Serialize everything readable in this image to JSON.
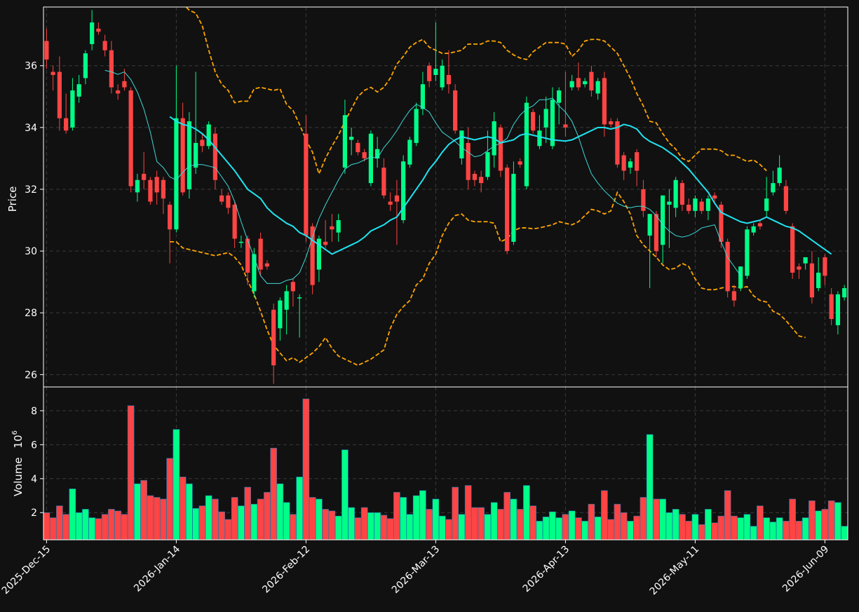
{
  "chart_data": {
    "type": "candlestick",
    "colors": {
      "background": "#111111",
      "up": "#00ff88",
      "down": "#ff4444",
      "ma_long": "#1fe3f0",
      "ma_short": "#40d8d8",
      "bands": "#ffa500",
      "grid": "#3a3a3a",
      "text": "#ffffff"
    },
    "price_panel": {
      "ylabel": "Price",
      "ylim": [
        25.6,
        37.9
      ],
      "yticks": [
        26,
        28,
        30,
        32,
        34,
        36
      ]
    },
    "volume_panel": {
      "ylabel": "Volume",
      "ylabel_exponent": "6",
      "ylim": [
        0.4,
        9.4
      ],
      "yticks": [
        2,
        4,
        6,
        8
      ]
    },
    "x_tick_labels": [
      {
        "index": 0,
        "label": "2025-Dec-15"
      },
      {
        "index": 20,
        "label": "2026-Jan-14"
      },
      {
        "index": 40,
        "label": "2026-Feb-12"
      },
      {
        "index": 60,
        "label": "2026-Mar-13"
      },
      {
        "index": 80,
        "label": "2026-Apr-13"
      },
      {
        "index": 100,
        "label": "2026-May-11"
      },
      {
        "index": 120,
        "label": "2026-Jun-09"
      }
    ],
    "candles": [
      [
        36.8,
        37.2,
        35.9,
        36.2,
        2.0
      ],
      [
        35.8,
        36.0,
        35.2,
        35.7,
        1.7
      ],
      [
        35.8,
        36.3,
        33.9,
        34.3,
        2.4
      ],
      [
        34.3,
        35.1,
        33.8,
        33.9,
        1.9
      ],
      [
        34.0,
        35.6,
        33.9,
        35.2,
        3.4
      ],
      [
        35.0,
        35.7,
        34.8,
        35.4,
        2.0
      ],
      [
        35.6,
        36.5,
        35.4,
        36.4,
        2.2
      ],
      [
        36.7,
        37.8,
        36.5,
        37.4,
        1.7
      ],
      [
        37.2,
        37.4,
        37.0,
        37.1,
        1.65
      ],
      [
        36.8,
        37.0,
        36.3,
        36.5,
        1.9
      ],
      [
        36.5,
        36.8,
        35.1,
        35.3,
        2.2
      ],
      [
        35.2,
        35.4,
        34.9,
        35.1,
        2.1
      ],
      [
        35.5,
        35.9,
        35.2,
        35.3,
        1.9
      ],
      [
        35.2,
        35.3,
        31.9,
        32.1,
        8.3
      ],
      [
        31.9,
        32.5,
        31.6,
        32.3,
        3.7
      ],
      [
        32.5,
        33.2,
        32.0,
        32.3,
        3.9
      ],
      [
        32.3,
        32.4,
        31.5,
        31.6,
        3.0
      ],
      [
        32.4,
        32.6,
        31.5,
        31.9,
        2.9
      ],
      [
        32.3,
        32.4,
        31.2,
        31.7,
        2.8
      ],
      [
        31.5,
        31.6,
        29.6,
        30.7,
        5.2
      ],
      [
        30.7,
        36.0,
        30.6,
        34.3,
        6.9
      ],
      [
        34.3,
        34.8,
        31.8,
        31.9,
        4.1
      ],
      [
        32.0,
        34.5,
        31.7,
        34.2,
        3.7
      ],
      [
        32.7,
        35.8,
        32.5,
        33.5,
        2.25
      ],
      [
        33.6,
        33.8,
        33.2,
        33.4,
        2.4
      ],
      [
        33.4,
        34.2,
        33.3,
        34.1,
        3.0
      ],
      [
        33.8,
        34.0,
        32.0,
        32.3,
        2.8
      ],
      [
        31.8,
        32.0,
        31.5,
        31.6,
        2.05
      ],
      [
        31.8,
        31.9,
        31.2,
        31.4,
        1.6
      ],
      [
        31.5,
        31.6,
        30.1,
        30.4,
        2.9
      ],
      [
        30.3,
        30.5,
        30.1,
        30.3,
        2.4
      ],
      [
        30.4,
        30.5,
        28.9,
        29.3,
        3.5
      ],
      [
        28.7,
        30.1,
        28.5,
        29.9,
        2.5
      ],
      [
        30.4,
        30.6,
        29.2,
        29.4,
        2.8
      ],
      [
        29.6,
        29.7,
        29.4,
        29.5,
        3.2
      ],
      [
        28.1,
        28.3,
        25.7,
        26.3,
        5.8
      ],
      [
        27.5,
        28.5,
        27.1,
        28.4,
        3.7
      ],
      [
        28.1,
        28.9,
        27.3,
        28.7,
        2.6
      ],
      [
        29.0,
        29.1,
        28.2,
        28.7,
        1.9
      ],
      [
        28.5,
        28.6,
        27.2,
        28.5,
        4.1
      ],
      [
        33.8,
        34.4,
        30.3,
        30.5,
        8.7
      ],
      [
        30.8,
        30.9,
        28.6,
        28.9,
        2.9
      ],
      [
        29.4,
        30.5,
        29.0,
        30.4,
        2.8
      ],
      [
        30.3,
        31.0,
        30.1,
        30.2,
        2.2
      ],
      [
        30.8,
        31.2,
        30.3,
        30.7,
        2.1
      ],
      [
        30.6,
        31.2,
        30.3,
        31.0,
        1.8
      ],
      [
        32.7,
        34.9,
        32.5,
        34.4,
        5.7
      ],
      [
        33.6,
        34.0,
        33.1,
        33.7,
        2.3
      ],
      [
        33.5,
        33.6,
        33.1,
        33.2,
        1.7
      ],
      [
        33.2,
        33.3,
        32.9,
        33.0,
        2.3
      ],
      [
        32.2,
        33.9,
        32.1,
        33.8,
        2.0
      ],
      [
        33.0,
        33.7,
        32.7,
        33.3,
        2.0
      ],
      [
        32.7,
        33.0,
        31.7,
        31.8,
        1.85
      ],
      [
        31.6,
        31.9,
        31.3,
        31.5,
        1.65
      ],
      [
        31.8,
        32.3,
        30.2,
        31.6,
        3.2
      ],
      [
        31.0,
        33.1,
        30.9,
        32.9,
        2.9
      ],
      [
        32.8,
        33.7,
        32.7,
        33.6,
        1.9
      ],
      [
        33.5,
        34.8,
        33.4,
        34.6,
        3.0
      ],
      [
        34.6,
        35.8,
        34.4,
        35.4,
        3.3
      ],
      [
        36.0,
        36.1,
        35.3,
        35.5,
        2.2
      ],
      [
        35.7,
        37.4,
        35.5,
        35.9,
        2.8
      ],
      [
        35.3,
        36.2,
        35.2,
        36.0,
        1.8
      ],
      [
        35.7,
        36.5,
        35.1,
        35.4,
        1.6
      ],
      [
        35.2,
        35.4,
        33.8,
        33.9,
        3.5
      ],
      [
        33.0,
        33.9,
        32.8,
        33.9,
        1.9
      ],
      [
        33.5,
        34.0,
        32.0,
        32.3,
        3.6
      ],
      [
        32.5,
        32.6,
        32.1,
        32.3,
        2.3
      ],
      [
        32.4,
        32.6,
        31.9,
        32.2,
        2.3
      ],
      [
        32.4,
        33.9,
        32.3,
        33.2,
        1.9
      ],
      [
        33.1,
        34.5,
        32.7,
        34.2,
        2.6
      ],
      [
        34.0,
        34.1,
        32.4,
        32.6,
        2.2
      ],
      [
        32.7,
        32.8,
        29.9,
        30.0,
        3.2
      ],
      [
        30.3,
        32.9,
        30.2,
        32.5,
        2.8
      ],
      [
        32.9,
        33.0,
        32.7,
        32.8,
        2.2
      ],
      [
        32.1,
        35.0,
        32.0,
        34.8,
        3.6
      ],
      [
        34.5,
        34.6,
        33.8,
        33.9,
        2.4
      ],
      [
        33.4,
        34.4,
        33.3,
        33.9,
        1.5
      ],
      [
        34.0,
        35.0,
        33.5,
        34.6,
        1.75
      ],
      [
        33.4,
        35.3,
        33.3,
        34.9,
        2.05
      ],
      [
        34.8,
        35.3,
        34.1,
        35.2,
        1.7
      ],
      [
        34.1,
        35.8,
        33.7,
        34.0,
        1.9
      ],
      [
        35.3,
        35.7,
        35.2,
        35.5,
        2.1
      ],
      [
        35.6,
        36.1,
        35.2,
        35.3,
        1.7
      ],
      [
        35.4,
        35.6,
        35.3,
        35.5,
        1.5
      ],
      [
        35.8,
        36.0,
        35.0,
        35.2,
        2.5
      ],
      [
        35.1,
        35.6,
        34.9,
        35.5,
        1.75
      ],
      [
        35.6,
        35.8,
        33.7,
        34.1,
        3.3
      ],
      [
        34.2,
        34.3,
        34.0,
        34.1,
        1.6
      ],
      [
        34.2,
        34.3,
        32.7,
        32.8,
        2.5
      ],
      [
        33.1,
        33.2,
        32.3,
        32.6,
        2.0
      ],
      [
        32.7,
        33.0,
        32.5,
        32.9,
        1.5
      ],
      [
        33.2,
        33.3,
        32.1,
        32.6,
        1.8
      ],
      [
        32.0,
        32.3,
        31.1,
        31.3,
        2.9
      ],
      [
        30.5,
        31.2,
        28.8,
        31.2,
        6.6
      ],
      [
        31.2,
        31.3,
        29.8,
        30.0,
        2.8
      ],
      [
        30.2,
        31.8,
        29.6,
        31.8,
        2.8
      ],
      [
        31.5,
        32.0,
        30.1,
        31.6,
        2.0
      ],
      [
        31.4,
        32.4,
        31.1,
        32.3,
        2.2
      ],
      [
        32.2,
        32.3,
        31.3,
        31.5,
        1.9
      ],
      [
        31.5,
        31.7,
        31.2,
        31.3,
        1.5
      ],
      [
        31.3,
        31.8,
        31.1,
        31.7,
        1.9
      ],
      [
        31.6,
        31.7,
        31.2,
        31.3,
        1.3
      ],
      [
        31.3,
        31.8,
        31.0,
        31.7,
        2.2
      ],
      [
        31.8,
        31.9,
        31.6,
        31.7,
        1.4
      ],
      [
        31.5,
        31.6,
        30.1,
        30.3,
        1.8
      ],
      [
        30.3,
        30.4,
        28.5,
        28.7,
        3.3
      ],
      [
        28.7,
        28.9,
        28.2,
        28.4,
        1.8
      ],
      [
        28.8,
        29.5,
        28.7,
        29.5,
        1.7
      ],
      [
        29.2,
        30.8,
        29.1,
        30.7,
        1.9
      ],
      [
        30.6,
        30.9,
        30.5,
        30.8,
        1.2
      ],
      [
        30.9,
        31.0,
        30.7,
        30.8,
        2.4
      ],
      [
        31.3,
        32.4,
        31.1,
        31.7,
        1.7
      ],
      [
        31.9,
        32.6,
        31.8,
        32.2,
        1.45
      ],
      [
        32.2,
        33.1,
        32.1,
        32.7,
        1.7
      ],
      [
        32.1,
        32.3,
        31.2,
        31.3,
        1.5
      ],
      [
        30.8,
        30.9,
        29.1,
        29.3,
        2.8
      ],
      [
        29.5,
        29.6,
        29.1,
        29.4,
        1.5
      ],
      [
        29.6,
        29.7,
        29.4,
        29.8,
        1.7
      ],
      [
        29.6,
        30.0,
        28.3,
        28.5,
        2.7
      ],
      [
        28.8,
        29.8,
        28.7,
        29.3,
        2.1
      ],
      [
        29.8,
        29.9,
        28.9,
        29.2,
        2.2
      ],
      [
        28.6,
        28.8,
        27.6,
        27.8,
        2.7
      ],
      [
        27.6,
        28.7,
        27.3,
        28.6,
        2.6
      ],
      [
        28.5,
        28.9,
        28.4,
        28.8,
        1.2
      ]
    ],
    "series": [
      {
        "style": "thick solid",
        "start_index": 19,
        "values": [
          34.35,
          34.2,
          34.1,
          34.05,
          33.95,
          33.8,
          33.6,
          33.35,
          33.1,
          32.85,
          32.6,
          32.3,
          32.0,
          31.85,
          31.7,
          31.4,
          31.2,
          31.05,
          30.9,
          30.8,
          30.6,
          30.5,
          30.35,
          30.2,
          30.05,
          29.9,
          30.0,
          30.1,
          30.2,
          30.3,
          30.45,
          30.65,
          30.75,
          30.85,
          31.0,
          31.1,
          31.4,
          31.7,
          32.0,
          32.3,
          32.65,
          32.9,
          33.2,
          33.45,
          33.6,
          33.7,
          33.65,
          33.6,
          33.65,
          33.7,
          33.65,
          33.5,
          33.55,
          33.6,
          33.75,
          33.8,
          33.75,
          33.7,
          33.65,
          33.6,
          33.58,
          33.56,
          33.6,
          33.7,
          33.8,
          33.9,
          34.0,
          34.0,
          33.95,
          34.0,
          34.1,
          34.05,
          33.95,
          33.7,
          33.55,
          33.45,
          33.35,
          33.2,
          33.05,
          32.85,
          32.65,
          32.4,
          32.15,
          31.9,
          31.55,
          31.25,
          31.15,
          31.05,
          30.95,
          30.9,
          30.95,
          31.0,
          31.1,
          31.0,
          30.9,
          30.8,
          30.75,
          30.65,
          30.5,
          30.35,
          30.2,
          30.05,
          29.9
        ]
      },
      {
        "style": "thin solid",
        "start_index": 9,
        "values": [
          35.85,
          35.8,
          35.72,
          35.8,
          35.55,
          35.15,
          34.6,
          33.85,
          32.9,
          32.7,
          32.4,
          32.3,
          32.55,
          32.75,
          32.8,
          32.8,
          32.75,
          32.7,
          32.4,
          32.1,
          31.6,
          30.95,
          30.35,
          29.8,
          29.2,
          28.95,
          28.95,
          28.95,
          29.05,
          29.1,
          29.3,
          29.8,
          30.45,
          31.05,
          31.5,
          31.9,
          32.3,
          32.65,
          32.8,
          32.85,
          32.95,
          33.05,
          33.0,
          33.35,
          33.6,
          33.9,
          34.25,
          34.55,
          34.75,
          34.65,
          34.5,
          34.15,
          33.85,
          33.7,
          33.55,
          33.35,
          33.2,
          33.05,
          33.1,
          33.25,
          33.4,
          33.5,
          33.65,
          34.1,
          34.4,
          34.6,
          34.7,
          34.9,
          34.9,
          34.95,
          34.7,
          34.5,
          34.2,
          33.7,
          33.05,
          32.5,
          32.2,
          31.95,
          31.75,
          31.55,
          31.45,
          31.4,
          31.45,
          31.45,
          31.35,
          31.15,
          30.85,
          30.65,
          30.5,
          30.45,
          30.5,
          30.6,
          30.75,
          30.8,
          30.85,
          30.3,
          29.8,
          29.5,
          29.2
        ]
      },
      {
        "style": "dashed",
        "start_index": 19,
        "values": [
          38.5,
          38.2,
          38.0,
          37.8,
          37.7,
          37.3,
          36.5,
          35.8,
          35.4,
          35.2,
          34.8,
          34.85,
          34.85,
          35.25,
          35.3,
          35.25,
          35.2,
          35.25,
          34.75,
          34.55,
          34.1,
          33.6,
          33.2,
          32.5,
          33.0,
          33.4,
          33.75,
          34.2,
          34.6,
          35.0,
          35.2,
          35.3,
          35.15,
          35.3,
          35.6,
          36.05,
          36.3,
          36.6,
          36.75,
          36.85,
          36.6,
          36.5,
          36.4,
          36.4,
          36.45,
          36.5,
          36.7,
          36.7,
          36.7,
          36.8,
          36.8,
          36.75,
          36.5,
          36.35,
          36.25,
          36.2,
          36.45,
          36.6,
          36.75,
          36.75,
          36.75,
          36.7,
          36.3,
          36.5,
          36.8,
          36.85,
          36.85,
          36.8,
          36.6,
          36.4,
          36.0,
          35.6,
          35.1,
          34.7,
          34.2,
          34.15,
          33.8,
          33.5,
          33.3,
          33.0,
          32.9,
          33.1,
          33.3,
          33.3,
          33.3,
          33.25,
          33.1,
          33.1,
          33.0,
          32.9,
          32.95,
          32.8,
          32.6
        ]
      },
      {
        "style": "dashed",
        "start_index": 19,
        "values": [
          30.3,
          30.3,
          30.1,
          30.05,
          30.0,
          29.95,
          29.9,
          29.85,
          29.9,
          29.95,
          29.8,
          29.55,
          29.05,
          28.6,
          28.05,
          27.45,
          26.95,
          26.7,
          26.45,
          26.55,
          26.4,
          26.55,
          26.7,
          26.9,
          27.2,
          26.85,
          26.6,
          26.5,
          26.4,
          26.3,
          26.4,
          26.5,
          26.65,
          26.8,
          27.5,
          27.95,
          28.2,
          28.4,
          28.9,
          29.1,
          29.6,
          29.9,
          30.5,
          30.9,
          31.15,
          31.2,
          31.0,
          30.95,
          30.95,
          30.95,
          30.9,
          30.3,
          30.4,
          30.65,
          30.75,
          30.75,
          30.72,
          30.75,
          30.8,
          30.85,
          30.95,
          30.9,
          30.85,
          30.95,
          31.15,
          31.35,
          31.3,
          31.2,
          31.3,
          31.9,
          31.6,
          31.2,
          30.5,
          30.2,
          30.0,
          29.8,
          29.55,
          29.4,
          29.45,
          29.6,
          29.5,
          29.1,
          28.8,
          28.75,
          28.75,
          28.8,
          28.85,
          28.85,
          28.8,
          28.85,
          28.55,
          28.4,
          28.35,
          28.05,
          27.95,
          27.75,
          27.5,
          27.25,
          27.2
        ]
      }
    ]
  }
}
